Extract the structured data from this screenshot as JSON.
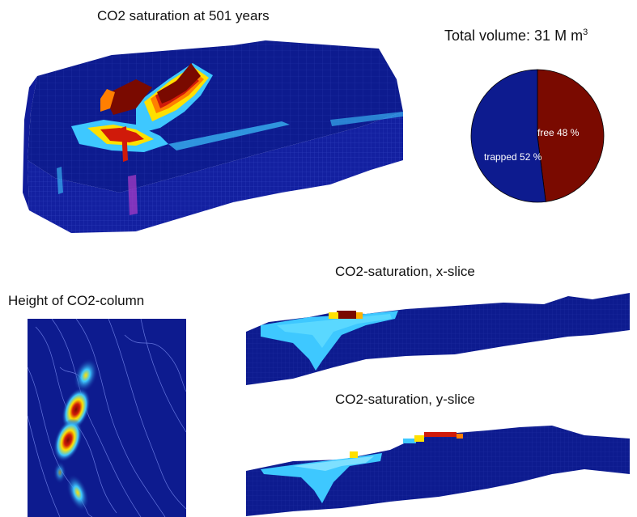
{
  "titles": {
    "main": "CO2 saturation at 501 years",
    "pie_prefix": "Total volume: 31 M m",
    "pie_sup": "3",
    "xslice": "CO2-saturation, x-slice",
    "yslice": "CO2-saturation, y-slice",
    "height": "Height of CO2-column"
  },
  "colors": {
    "background_blue": "#0d1b8f",
    "dark_red": "#7a0a00",
    "red": "#d01a0a",
    "orange": "#ff7f00",
    "yellow": "#ffe000",
    "cyan": "#3ec8ff",
    "light_blue": "#2a6cff",
    "grid_line": "#4a5fd8"
  },
  "chart_data": [
    {
      "type": "pie",
      "title": "Total volume: 31 M m3",
      "slices": [
        {
          "label": "free 48 %",
          "value": 48,
          "color": "#7a0a00"
        },
        {
          "label": "trapped 52 %",
          "value": 52,
          "color": "#0d1b8f"
        }
      ]
    },
    {
      "type": "heatmap",
      "title": "CO2 saturation at 501 years",
      "colormap": "jet"
    },
    {
      "type": "heatmap",
      "title": "CO2-saturation, x-slice",
      "colormap": "jet"
    },
    {
      "type": "heatmap",
      "title": "CO2-saturation, y-slice",
      "colormap": "jet"
    },
    {
      "type": "heatmap",
      "title": "Height of CO2-column",
      "colormap": "jet"
    }
  ]
}
